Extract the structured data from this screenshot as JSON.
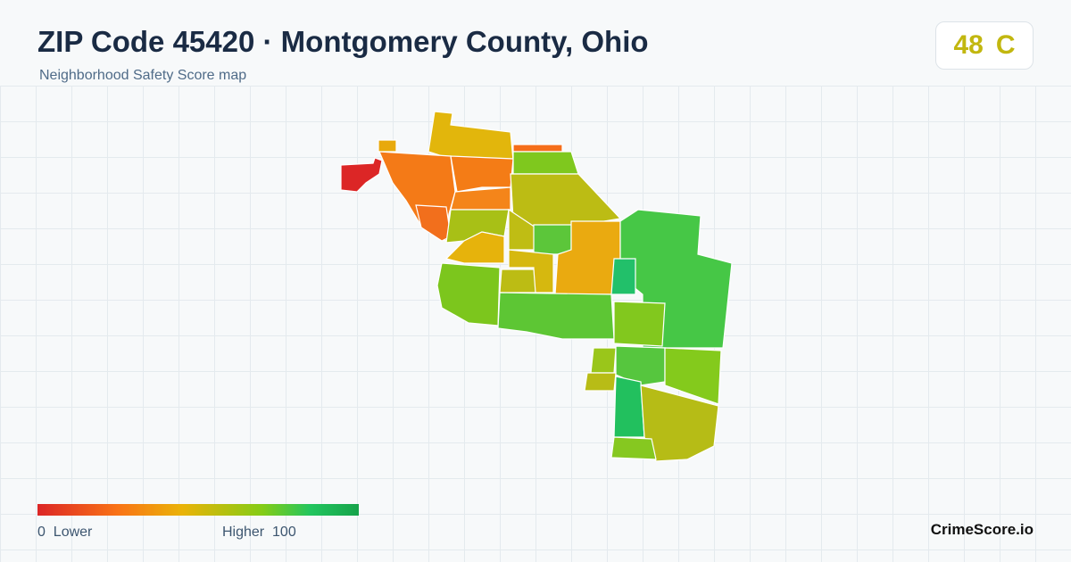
{
  "header": {
    "title": "ZIP Code 45420 · Montgomery County, Ohio",
    "subtitle": "Neighborhood Safety Score map"
  },
  "score": {
    "value": 48,
    "grade": "C"
  },
  "legend": {
    "min": 0,
    "min_label": "Lower",
    "max_label": "Higher",
    "max": 100
  },
  "brand": "CrimeScore.io"
}
